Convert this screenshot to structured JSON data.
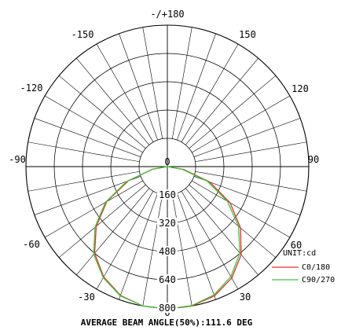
{
  "chart_data": {
    "type": "polar",
    "angle_labels": [
      {
        "deg": 0,
        "text": "0"
      },
      {
        "deg": 30,
        "text": "30"
      },
      {
        "deg": 60,
        "text": "60"
      },
      {
        "deg": 90,
        "text": "90"
      },
      {
        "deg": 120,
        "text": "120"
      },
      {
        "deg": 150,
        "text": "150"
      },
      {
        "deg": 180,
        "text": "-/+180"
      },
      {
        "deg": -150,
        "text": "-150"
      },
      {
        "deg": -120,
        "text": "-120"
      },
      {
        "deg": -90,
        "text": "-90"
      },
      {
        "deg": -60,
        "text": "-60"
      },
      {
        "deg": -30,
        "text": "-30"
      }
    ],
    "radial_ticks": [
      0,
      160,
      320,
      480,
      640,
      800
    ],
    "radial_tick_labels": [
      "0",
      "160",
      "320",
      "480",
      "640",
      "800"
    ],
    "r_max": 800,
    "angular_grid_step_deg": 10,
    "unit_label": "UNIT:cd",
    "series": [
      {
        "name": "C0/180",
        "color": "#e0302a",
        "angles_deg": [
          -90,
          -80,
          -70,
          -60,
          -50,
          -40,
          -30,
          -20,
          -10,
          0,
          10,
          20,
          30,
          40,
          50,
          60,
          70,
          80,
          90
        ],
        "values": [
          0,
          85,
          235,
          395,
          525,
          640,
          720,
          775,
          800,
          805,
          800,
          778,
          728,
          650,
          540,
          410,
          255,
          95,
          0
        ]
      },
      {
        "name": "C90/270",
        "color": "#3cc83c",
        "angles_deg": [
          -90,
          -80,
          -70,
          -60,
          -50,
          -40,
          -30,
          -20,
          -10,
          0,
          10,
          20,
          30,
          40,
          50,
          60,
          70,
          80,
          90
        ],
        "values": [
          0,
          88,
          245,
          405,
          535,
          648,
          725,
          778,
          800,
          805,
          798,
          772,
          718,
          638,
          525,
          392,
          240,
          85,
          0
        ]
      }
    ],
    "footer": "AVERAGE BEAM ANGLE(50%):111.6 DEG"
  }
}
